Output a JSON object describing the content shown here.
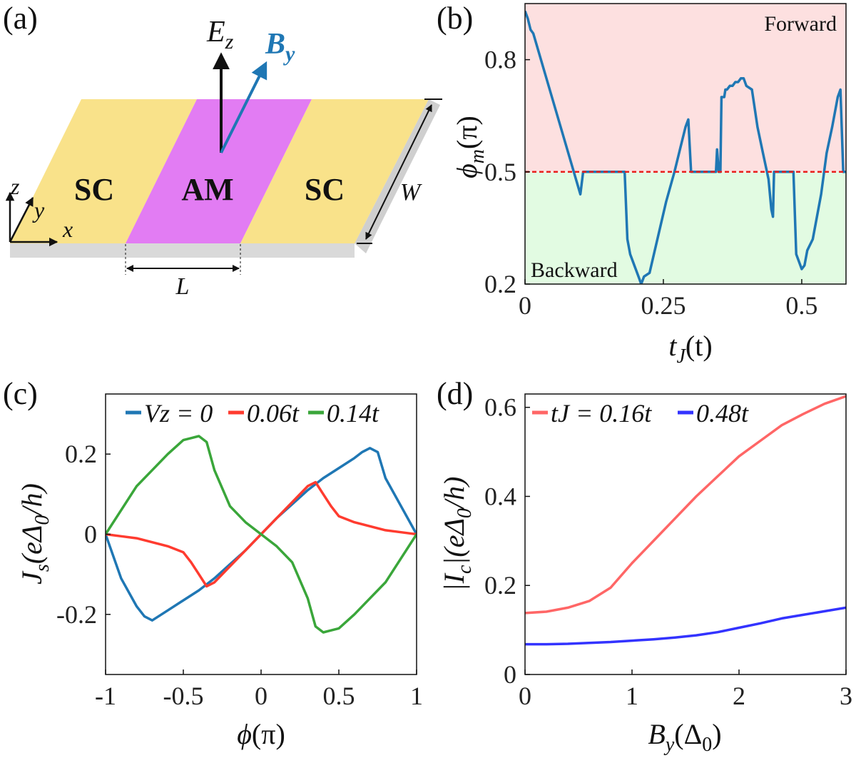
{
  "panel_labels": [
    "(a)",
    "(b)",
    "(c)",
    "(d)"
  ],
  "colors": {
    "blue": "#1f77b4",
    "red": "#ff3b2f",
    "green": "#3aa63a",
    "pink_red": "#ff6666",
    "violet_blue": "#3333ff",
    "forward_bg": "#fde0e0",
    "backward_bg": "#e2fbe2",
    "sc": "#f9e28a",
    "am": "#e27cf3"
  },
  "schematic": {
    "labels": {
      "sc_left": "SC",
      "am": "AM",
      "sc_right": "SC"
    },
    "field_e": {
      "base": "E",
      "sub": "z"
    },
    "field_b": {
      "base": "B",
      "sub": "y"
    },
    "axes": {
      "z": "z",
      "y": "y",
      "x": "x"
    },
    "dims": {
      "length": "L",
      "width": "W"
    }
  },
  "chart_data": [
    {
      "id": "b",
      "type": "line",
      "title": "",
      "xlabel": {
        "base": "t",
        "sub": "J",
        "rest": "(t)"
      },
      "ylabel": {
        "base": "ϕ",
        "sub": "m",
        "rest": "(π)"
      },
      "xlim": [
        0,
        0.58
      ],
      "ylim": [
        0.2,
        0.95
      ],
      "xticks": [
        0,
        0.25,
        0.5
      ],
      "xtick_labels": [
        "0",
        "0.25",
        "0.5"
      ],
      "yticks": [
        0.2,
        0.5,
        0.8
      ],
      "ytick_labels": [
        "0.2",
        "0.5",
        "0.8"
      ],
      "region_labels": {
        "top": "Forward",
        "bottom": "Backward"
      },
      "threshold": 0.5,
      "series": [
        {
          "name": "phi_m",
          "x": [
            0,
            0.005,
            0.01,
            0.015,
            0.1,
            0.105,
            0.12,
            0.18,
            0.185,
            0.19,
            0.205,
            0.21,
            0.215,
            0.225,
            0.255,
            0.27,
            0.28,
            0.29,
            0.295,
            0.3,
            0.345,
            0.347,
            0.35,
            0.353,
            0.355,
            0.36,
            0.362,
            0.365,
            0.37,
            0.375,
            0.38,
            0.385,
            0.39,
            0.395,
            0.4,
            0.41,
            0.42,
            0.43,
            0.44,
            0.445,
            0.448,
            0.45,
            0.455,
            0.485,
            0.49,
            0.495,
            0.5,
            0.505,
            0.51,
            0.52,
            0.535,
            0.545,
            0.555,
            0.565,
            0.57,
            0.575,
            0.58
          ],
          "y": [
            0.93,
            0.91,
            0.88,
            0.87,
            0.44,
            0.5,
            0.5,
            0.5,
            0.32,
            0.28,
            0.22,
            0.2,
            0.22,
            0.23,
            0.42,
            0.5,
            0.56,
            0.62,
            0.64,
            0.5,
            0.5,
            0.56,
            0.5,
            0.5,
            0.7,
            0.7,
            0.72,
            0.72,
            0.73,
            0.73,
            0.74,
            0.74,
            0.75,
            0.75,
            0.73,
            0.72,
            0.62,
            0.55,
            0.48,
            0.4,
            0.38,
            0.5,
            0.5,
            0.5,
            0.28,
            0.26,
            0.24,
            0.25,
            0.29,
            0.32,
            0.44,
            0.55,
            0.62,
            0.7,
            0.72,
            0.5,
            0.5
          ]
        }
      ]
    },
    {
      "id": "c",
      "type": "line",
      "title": "",
      "xlabel": {
        "base": "ϕ",
        "rest": "(π)"
      },
      "ylabel": {
        "base": "J",
        "sub": "s",
        "rest": "(eΔ",
        "sub2": "0",
        "rest2": "/h)"
      },
      "xlim": [
        -1,
        1
      ],
      "ylim": [
        -0.35,
        0.35
      ],
      "xticks": [
        -1,
        -0.5,
        0,
        0.5,
        1
      ],
      "xtick_labels": [
        "-1",
        "-0.5",
        "0",
        "0.5",
        "1"
      ],
      "yticks": [
        -0.2,
        0,
        0.2
      ],
      "ytick_labels": [
        "-0.2",
        "0",
        "0.2"
      ],
      "legend": [
        {
          "name": "Vz = 0",
          "color": "#1f77b4"
        },
        {
          "name": "0.06t",
          "color": "#ff3b2f"
        },
        {
          "name": "0.14t",
          "color": "#3aa63a"
        }
      ],
      "series": [
        {
          "name": "Vz = 0",
          "x": [
            -1,
            -0.9,
            -0.8,
            -0.75,
            -0.7,
            -0.6,
            -0.5,
            -0.4,
            -0.3,
            -0.2,
            -0.1,
            0,
            0.1,
            0.2,
            0.3,
            0.4,
            0.5,
            0.6,
            0.65,
            0.7,
            0.75,
            0.8,
            0.9,
            1
          ],
          "y": [
            0,
            -0.11,
            -0.18,
            -0.205,
            -0.215,
            -0.19,
            -0.165,
            -0.14,
            -0.11,
            -0.075,
            -0.04,
            0,
            0.04,
            0.075,
            0.11,
            0.14,
            0.165,
            0.19,
            0.205,
            0.215,
            0.205,
            0.14,
            0.07,
            0
          ]
        },
        {
          "name": "0.06t",
          "x": [
            -1,
            -0.9,
            -0.8,
            -0.7,
            -0.6,
            -0.5,
            -0.45,
            -0.4,
            -0.35,
            -0.3,
            -0.2,
            -0.1,
            0,
            0.1,
            0.2,
            0.3,
            0.35,
            0.4,
            0.45,
            0.5,
            0.6,
            0.7,
            0.8,
            0.9,
            1
          ],
          "y": [
            0,
            -0.005,
            -0.01,
            -0.02,
            -0.03,
            -0.045,
            -0.07,
            -0.1,
            -0.13,
            -0.12,
            -0.08,
            -0.04,
            0,
            0.04,
            0.08,
            0.12,
            0.13,
            0.1,
            0.07,
            0.045,
            0.03,
            0.02,
            0.01,
            0.005,
            0
          ]
        },
        {
          "name": "0.14t",
          "x": [
            -1,
            -0.9,
            -0.8,
            -0.7,
            -0.6,
            -0.5,
            -0.45,
            -0.4,
            -0.35,
            -0.3,
            -0.2,
            -0.1,
            0,
            0.1,
            0.2,
            0.3,
            0.35,
            0.4,
            0.45,
            0.5,
            0.6,
            0.7,
            0.8,
            0.9,
            1
          ],
          "y": [
            0,
            0.06,
            0.12,
            0.16,
            0.2,
            0.235,
            0.24,
            0.245,
            0.23,
            0.16,
            0.07,
            0.03,
            0,
            -0.03,
            -0.07,
            -0.16,
            -0.23,
            -0.245,
            -0.24,
            -0.235,
            -0.2,
            -0.16,
            -0.12,
            -0.06,
            0
          ]
        }
      ]
    },
    {
      "id": "d",
      "type": "line",
      "title": "",
      "xlabel": {
        "base": "B",
        "sub": "y",
        "rest": "(Δ",
        "sub2": "0",
        "rest2": ")"
      },
      "ylabel": {
        "base": "|I",
        "sub": "c",
        "rest": "|(eΔ",
        "sub2": "0",
        "rest2": "/h)"
      },
      "xlim": [
        0,
        3
      ],
      "ylim": [
        0,
        0.63
      ],
      "xticks": [
        0,
        1,
        2,
        3
      ],
      "xtick_labels": [
        "0",
        "1",
        "2",
        "3"
      ],
      "yticks": [
        0,
        0.2,
        0.4,
        0.6
      ],
      "ytick_labels": [
        "0",
        "0.2",
        "0.4",
        "0.6"
      ],
      "legend": [
        {
          "name": "tJ = 0.16t",
          "color": "#ff6666"
        },
        {
          "name": "0.48t",
          "color": "#3333ff"
        }
      ],
      "series": [
        {
          "name": "tJ = 0.16t",
          "x": [
            0,
            0.2,
            0.4,
            0.6,
            0.8,
            1.0,
            1.2,
            1.4,
            1.6,
            1.8,
            2.0,
            2.2,
            2.4,
            2.6,
            2.8,
            3.0
          ],
          "y": [
            0.138,
            0.141,
            0.15,
            0.165,
            0.195,
            0.25,
            0.3,
            0.35,
            0.4,
            0.445,
            0.49,
            0.525,
            0.56,
            0.585,
            0.608,
            0.625
          ]
        },
        {
          "name": "0.48t",
          "x": [
            0,
            0.2,
            0.4,
            0.6,
            0.8,
            1.0,
            1.2,
            1.4,
            1.6,
            1.8,
            2.0,
            2.2,
            2.4,
            2.6,
            2.8,
            3.0
          ],
          "y": [
            0.068,
            0.068,
            0.069,
            0.071,
            0.073,
            0.076,
            0.079,
            0.083,
            0.088,
            0.095,
            0.105,
            0.115,
            0.126,
            0.134,
            0.142,
            0.15
          ]
        }
      ]
    }
  ]
}
